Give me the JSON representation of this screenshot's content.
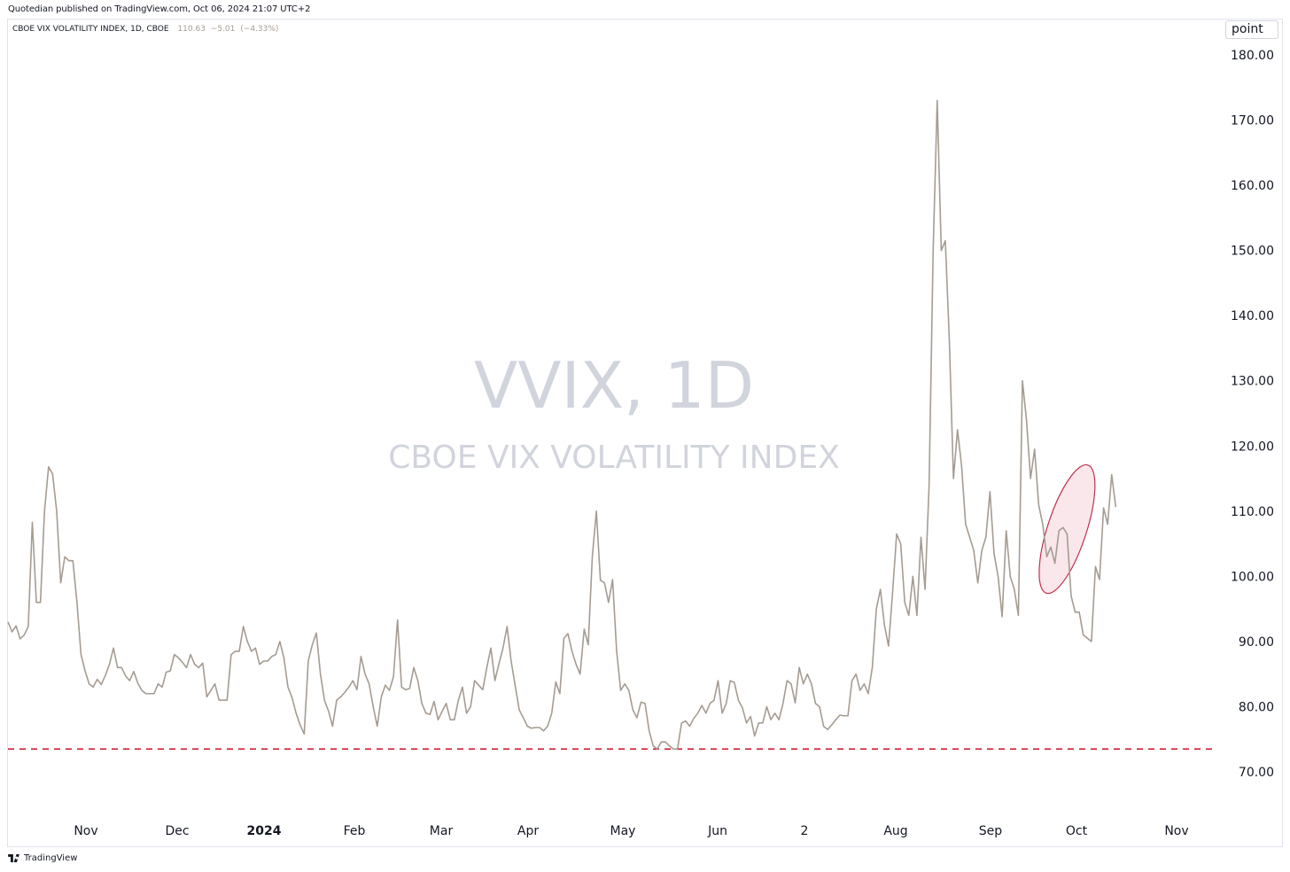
{
  "header": {
    "credit": "Quotedian published on TradingView.com, Oct 06, 2024 21:07 UTC+2"
  },
  "legend": {
    "symbol": "CBOE VIX VOLATILITY INDEX, 1D, CBOE",
    "last": "110.63",
    "change": "−5.01",
    "change_pct": "(−4.33%)"
  },
  "unit_button": "point",
  "watermark": {
    "symbol": "VVIX, 1D",
    "name": "CBOE VIX VOLATILITY INDEX"
  },
  "footer": {
    "brand": "TradingView"
  },
  "colors": {
    "line": "#a59c92",
    "support": "#d0263e",
    "highlight_fill": "#f6dde2",
    "highlight_stroke": "#c0314f",
    "watermark": "#d1d4dc"
  },
  "chart_data": {
    "type": "line",
    "series": [
      {
        "x_start": "2023-10-02",
        "frequency": "business days",
        "values": [
          93,
          91.5,
          92.4,
          90.4,
          91,
          92.3,
          108.3,
          96,
          96,
          110,
          116.8,
          115.7,
          110,
          99,
          103,
          102.4,
          102.4,
          96,
          88,
          85.5,
          83.5,
          83,
          84.2,
          83.4,
          84.8,
          86.5,
          89,
          86,
          86,
          84.7,
          84,
          85.4,
          83.6,
          82.5,
          82,
          82,
          82,
          83.5,
          83,
          85.3,
          85.5,
          88,
          87.5,
          86.8,
          86,
          88,
          86.5,
          86,
          86.7,
          81.5,
          82.5,
          83.5,
          81,
          81,
          81,
          88,
          88.5,
          88.5,
          92.3,
          90,
          88.5,
          89,
          86.5,
          87,
          87,
          87.7,
          88,
          90,
          87.5,
          83,
          81.4,
          79,
          77.2,
          75.8,
          87,
          89.5,
          91.3,
          85,
          81,
          79.3,
          77,
          81,
          81.5,
          82.2,
          83,
          84,
          82.6,
          87.7,
          85,
          83.5,
          80,
          77,
          81.5,
          83.3,
          82.5,
          84.6,
          93.3,
          83,
          82.6,
          82.8,
          86,
          84,
          80.5,
          79,
          78.8,
          80.8,
          78,
          79.3,
          80.5,
          78,
          78,
          81,
          83,
          79,
          80,
          84,
          83.3,
          82.6,
          86,
          89,
          84,
          86.6,
          89,
          92.3,
          87,
          83.2,
          79.5,
          78.3,
          77,
          76.7,
          76.8,
          76.8,
          76.3,
          77,
          79,
          83.8,
          82,
          90.5,
          91.2,
          88.5,
          86.5,
          85,
          91.9,
          89.5,
          103,
          110,
          99.4,
          99,
          96,
          99.5,
          88.5,
          82.5,
          83.5,
          82.5,
          79.5,
          78.3,
          80.7,
          80.5,
          76.3,
          74,
          73.5,
          74.6,
          74.6,
          74,
          73.5,
          73.5,
          77.5,
          77.8,
          77,
          78.2,
          79,
          80.2,
          79,
          80.5,
          81,
          84,
          79,
          80.5,
          84,
          83.7,
          81,
          79.8,
          77.5,
          78.5,
          75.5,
          77.5,
          77.5,
          80,
          78,
          79,
          78,
          80.5,
          84,
          83.5,
          80.6,
          86,
          83.5,
          85,
          83.5,
          80.5,
          80,
          77,
          76.5,
          77.2,
          78,
          78.7,
          78.6,
          78.6,
          84,
          85,
          82.5,
          83.5,
          82,
          86,
          95,
          98,
          92.5,
          89.3,
          97.5,
          106.5,
          105,
          96,
          94,
          100,
          94,
          106,
          98,
          114,
          150,
          173,
          150,
          151.5,
          136,
          115,
          122.5,
          117,
          108,
          106,
          104,
          99,
          104,
          106,
          113,
          103.5,
          100,
          93.8,
          107,
          100,
          98,
          94,
          130,
          124,
          115,
          119.5,
          111,
          108,
          103,
          104.5,
          102,
          107,
          107.5,
          106.5,
          97,
          94.5,
          94.5,
          91,
          90.5,
          90,
          101.5,
          99.5,
          110.5,
          108,
          115.6,
          110.63
        ]
      }
    ],
    "xaxis_ticks": [
      "Nov",
      "Dec",
      "2024",
      "Feb",
      "Mar",
      "Apr",
      "May",
      "Jun",
      "2",
      "Aug",
      "Sep",
      "Oct",
      "Nov"
    ],
    "ylim": [
      64.5,
      184
    ],
    "yticks": [
      70,
      80,
      90,
      100,
      110,
      120,
      130,
      140,
      150,
      160,
      170,
      180
    ],
    "ytick_labels": [
      "70.00",
      "80.00",
      "90.00",
      "100.00",
      "110.00",
      "120.00",
      "130.00",
      "140.00",
      "150.00",
      "160.00",
      "170.00",
      "180.00"
    ],
    "reference_line": {
      "y": 73.5,
      "style": "dashed"
    },
    "highlight": {
      "x_start": "2024-09-26",
      "x_end": "2024-10-04",
      "y_low": 97,
      "y_high": 117.5,
      "shape": "ellipse"
    },
    "title": "",
    "xlabel": "",
    "ylabel": ""
  }
}
